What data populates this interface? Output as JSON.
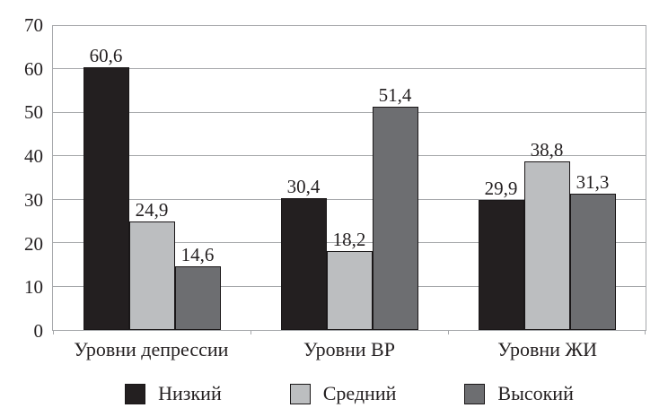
{
  "chart_data": {
    "type": "bar",
    "title": "",
    "categories": [
      "Уровни депрессии",
      "Уровни ВР",
      "Уровни ЖИ"
    ],
    "series": [
      {
        "name": "Низкий",
        "color": "#231f20",
        "values": [
          60.6,
          30.4,
          29.9
        ],
        "labels": [
          "60,6",
          "30,4",
          "29,9"
        ]
      },
      {
        "name": "Средний",
        "color": "#bcbec0",
        "values": [
          24.9,
          18.2,
          38.8
        ],
        "labels": [
          "24,9",
          "18,2",
          "38,8"
        ]
      },
      {
        "name": "Высокий",
        "color": "#6d6e71",
        "values": [
          14.6,
          51.4,
          31.3
        ],
        "labels": [
          "14,6",
          "51,4",
          "31,3"
        ]
      }
    ],
    "xlabel": "",
    "ylabel": "",
    "ylim": [
      0,
      70
    ],
    "yticks": [
      0,
      10,
      20,
      30,
      40,
      50,
      60,
      70
    ],
    "grid": true,
    "legend_position": "bottom",
    "legend": [
      "Низкий",
      "Средний",
      "Высокий"
    ]
  },
  "colors": {
    "grid_line": "#a6a8ab",
    "text": "#231f20",
    "bar_border": "#1a1718",
    "background": "#ffffff"
  }
}
